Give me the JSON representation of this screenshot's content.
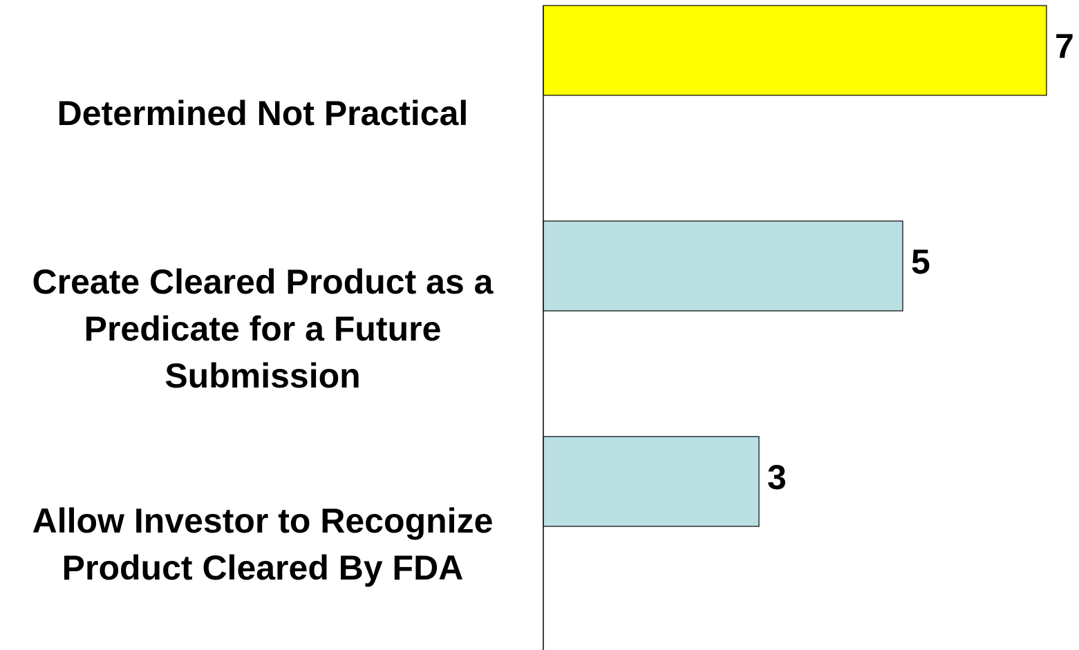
{
  "chart_data": {
    "type": "barh",
    "categories": [
      "Determined Not Practical",
      "Create Cleared Product as a\nPredicate for a Future\nSubmission",
      "Allow Investor to Recognize\nProduct Cleared By FDA"
    ],
    "values": [
      7,
      5,
      3
    ],
    "colors": [
      "#ffff00",
      "#bbe0e3",
      "#bbe0e3"
    ],
    "xlim": [
      0,
      7
    ]
  }
}
